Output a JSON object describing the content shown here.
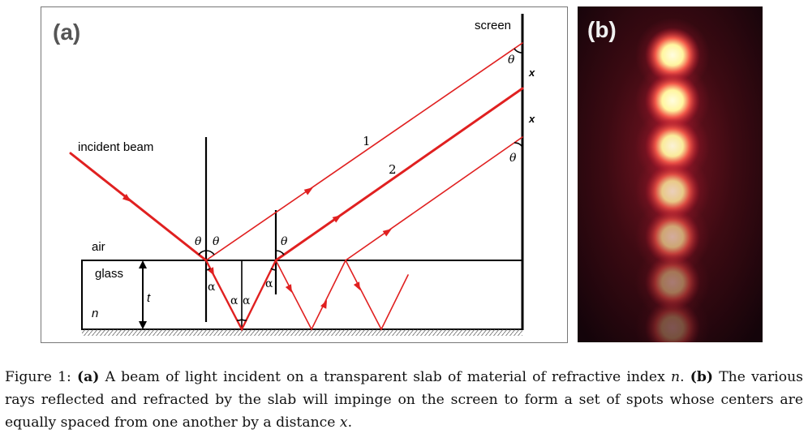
{
  "figure_a": {
    "panel_label": "(a)",
    "labels": {
      "screen": "screen",
      "incident_beam": "incident beam",
      "air": "air",
      "glass": "glass",
      "t": "t",
      "n": "n",
      "theta": "θ",
      "alpha": "α",
      "x": "x",
      "ray1": "1",
      "ray2": "2"
    },
    "colors": {
      "ray": "#e02020",
      "line": "#000000",
      "hatch": "#555555"
    }
  },
  "figure_b": {
    "panel_label": "(b)",
    "colors": {
      "background": "#1a0509",
      "spot_core": "#fffbd0",
      "spot_glow": "#e0203a"
    },
    "spot_brightness": [
      1.0,
      1.0,
      0.95,
      0.8,
      0.65,
      0.45,
      0.3
    ]
  },
  "caption": {
    "prefix": "Figure 1: ",
    "a_tag": "(a)",
    "text1": " A beam of light incident on a transparent slab of material of refractive index ",
    "n_var": "n",
    "text2": ". ",
    "b_tag": "(b)",
    "text3": " The various rays reflected and refracted by the slab will impinge on the screen to form a set of spots whose centers are equally spaced from one another by a distance ",
    "x_var": "x",
    "text4": "."
  }
}
